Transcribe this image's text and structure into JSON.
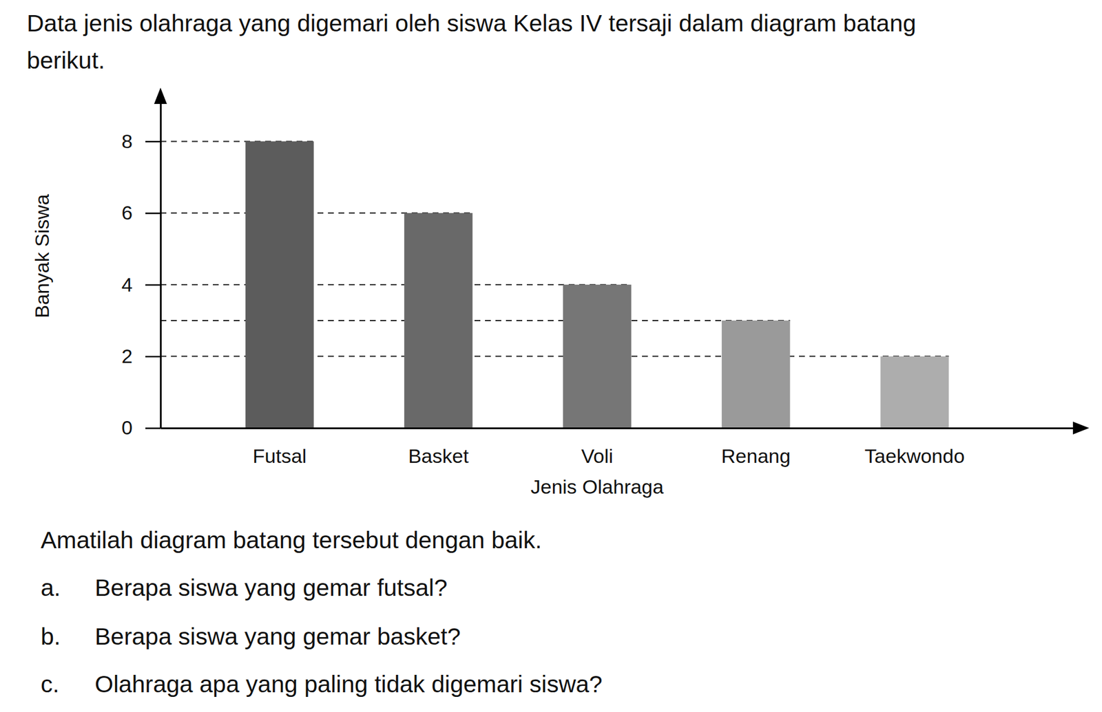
{
  "text": {
    "intro": [
      "Data jenis olahraga yang digemari oleh siswa Kelas IV tersaji dalam diagram batang",
      "berikut."
    ],
    "instruction": "Amatilah diagram batang tersebut dengan baik.",
    "questions": [
      {
        "label": "a.",
        "text": "Berapa siswa yang gemar futsal?"
      },
      {
        "label": "b.",
        "text": "Berapa siswa yang gemar basket?"
      },
      {
        "label": "c.",
        "text": "Olahraga apa yang paling tidak digemari siswa?"
      }
    ]
  },
  "chart_data": {
    "type": "bar",
    "x_label": "Jenis Olahraga",
    "y_label": "Banyak Siswa",
    "categories": [
      "Futsal",
      "Basket",
      "Voli",
      "Renang",
      "Taekwondo"
    ],
    "values": [
      8,
      6,
      4,
      3,
      2
    ],
    "colors": [
      "#5c5c5c",
      "#696969",
      "#767676",
      "#9a9a9a",
      "#adadad"
    ],
    "ylim": [
      0,
      9.4
    ],
    "yticks": [
      0,
      2,
      4,
      6,
      8
    ]
  }
}
